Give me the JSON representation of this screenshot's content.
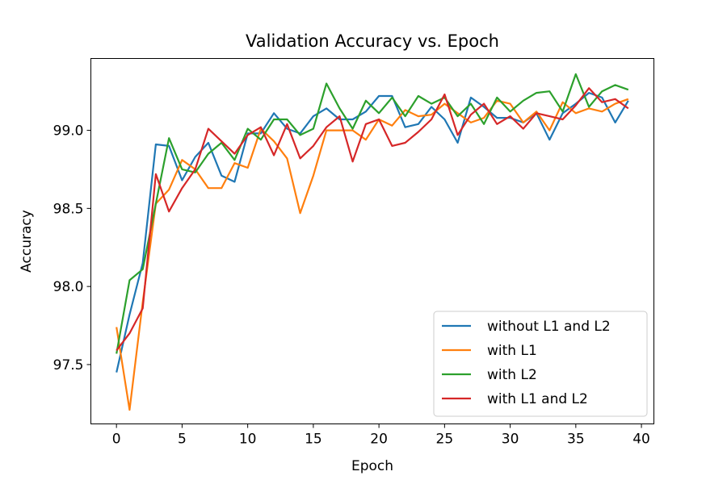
{
  "chart_data": {
    "type": "line",
    "title": "Validation Accuracy vs. Epoch",
    "xlabel": "Epoch",
    "ylabel": "Accuracy",
    "xlim": [
      -1.95,
      40.95
    ],
    "ylim": [
      97.12,
      99.46
    ],
    "xticks": [
      0,
      5,
      10,
      15,
      20,
      25,
      30,
      35,
      40
    ],
    "yticks": [
      97.5,
      98.0,
      98.5,
      99.0
    ],
    "ytick_labels": [
      "97.5",
      "98.0",
      "98.5",
      "99.0"
    ],
    "legend": "lower-right",
    "grid": false,
    "x": [
      0,
      1,
      2,
      3,
      4,
      5,
      6,
      7,
      8,
      9,
      10,
      11,
      12,
      13,
      14,
      15,
      16,
      17,
      18,
      19,
      20,
      21,
      22,
      23,
      24,
      25,
      26,
      27,
      28,
      29,
      30,
      31,
      32,
      33,
      34,
      35,
      36,
      37,
      38,
      39
    ],
    "series": [
      {
        "name": "without L1 and L2",
        "color": "#1f77b4",
        "values": [
          97.45,
          97.82,
          98.15,
          98.91,
          98.9,
          98.68,
          98.83,
          98.92,
          98.71,
          98.67,
          98.98,
          98.98,
          99.11,
          99.01,
          98.98,
          99.09,
          99.14,
          99.07,
          99.07,
          99.12,
          99.22,
          99.22,
          99.02,
          99.04,
          99.15,
          99.07,
          98.92,
          99.21,
          99.15,
          99.08,
          99.08,
          99.05,
          99.11,
          98.94,
          99.11,
          99.17,
          99.24,
          99.21,
          99.05,
          99.19
        ]
      },
      {
        "name": "with L1",
        "color": "#ff7f0e",
        "values": [
          97.74,
          97.21,
          97.9,
          98.53,
          98.62,
          98.81,
          98.75,
          98.63,
          98.63,
          98.79,
          98.76,
          99.01,
          98.93,
          98.82,
          98.47,
          98.71,
          99.0,
          99.0,
          99.0,
          98.94,
          99.07,
          99.03,
          99.13,
          99.09,
          99.1,
          99.17,
          99.11,
          99.05,
          99.08,
          99.19,
          99.17,
          99.05,
          99.12,
          99.0,
          99.18,
          99.11,
          99.14,
          99.12,
          99.17,
          99.2
        ]
      },
      {
        "name": "with L2",
        "color": "#2ca02c",
        "values": [
          97.57,
          98.04,
          98.11,
          98.53,
          98.95,
          98.75,
          98.73,
          98.85,
          98.92,
          98.81,
          99.01,
          98.94,
          99.07,
          99.07,
          98.97,
          99.01,
          99.3,
          99.14,
          99.01,
          99.19,
          99.11,
          99.21,
          99.09,
          99.22,
          99.17,
          99.21,
          99.09,
          99.17,
          99.04,
          99.21,
          99.12,
          99.19,
          99.24,
          99.25,
          99.12,
          99.36,
          99.15,
          99.25,
          99.29,
          99.26
        ]
      },
      {
        "name": "with L1 and L2",
        "color": "#d62728",
        "values": [
          97.59,
          97.7,
          97.86,
          98.72,
          98.48,
          98.63,
          98.75,
          99.01,
          98.93,
          98.85,
          98.97,
          99.02,
          98.84,
          99.04,
          98.82,
          98.9,
          99.02,
          99.09,
          98.8,
          99.04,
          99.07,
          98.9,
          98.92,
          98.99,
          99.07,
          99.23,
          98.97,
          99.1,
          99.17,
          99.04,
          99.09,
          99.01,
          99.11,
          99.09,
          99.07,
          99.16,
          99.27,
          99.18,
          99.2,
          99.14
        ]
      }
    ]
  }
}
